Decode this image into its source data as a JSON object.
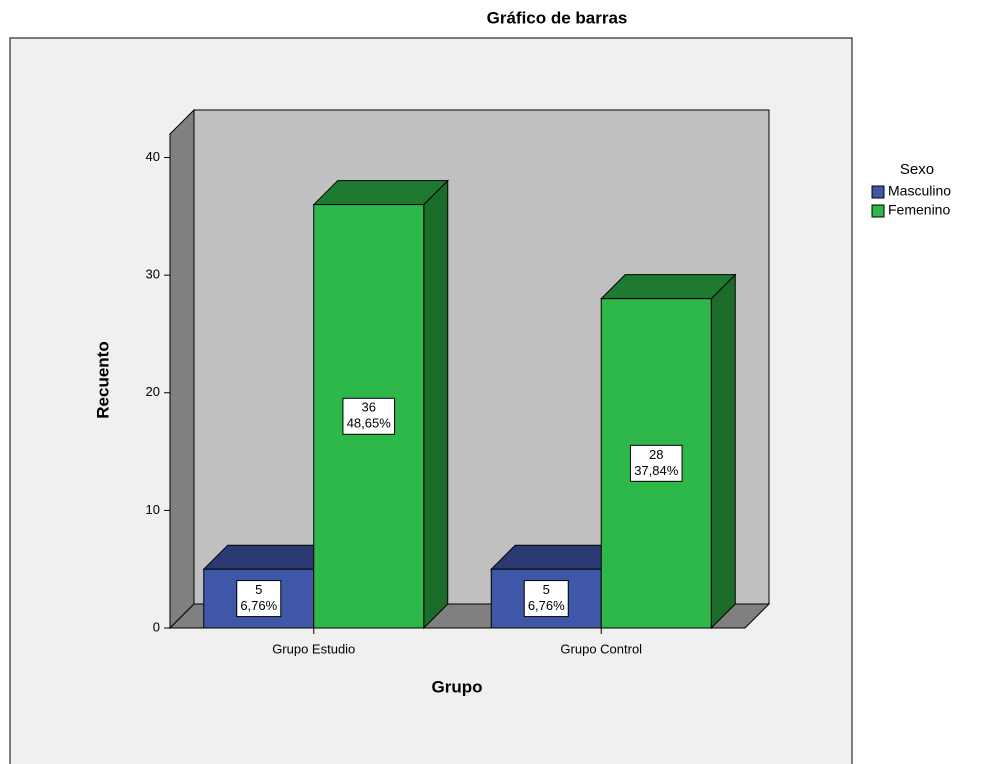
{
  "chart_data": {
    "type": "bar3d",
    "title": "Gráfico de barras",
    "x_label": "Grupo",
    "y_label": "Recuento",
    "categories": [
      "Grupo Estudio",
      "Grupo Control"
    ],
    "series": [
      {
        "name": "Masculino",
        "color": "#3f57a8",
        "values": [
          5,
          5
        ],
        "percentages": [
          6.76,
          6.76
        ],
        "percentage_labels": [
          "6,76%",
          "6,76%"
        ]
      },
      {
        "name": "Femenino",
        "color": "#2eb84a",
        "values": [
          36,
          28
        ],
        "percentages": [
          48.65,
          37.84
        ],
        "percentage_labels": [
          "48,65%",
          "37,84%"
        ]
      }
    ],
    "ylim": [
      0,
      42
    ],
    "yticks": [
      0,
      10,
      20,
      30,
      40
    ],
    "legend_title": "Sexo",
    "legend": "right",
    "grid": false
  }
}
